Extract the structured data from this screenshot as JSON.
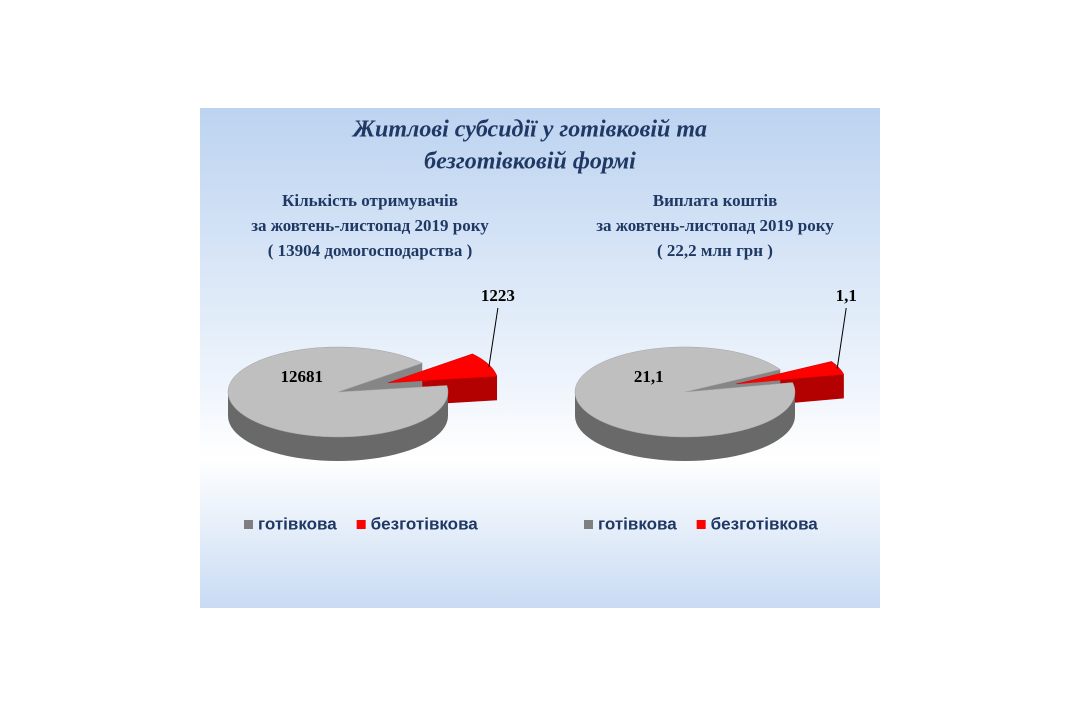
{
  "title": [
    "Житлові субсидії у готівковій та",
    "безготівковій формі"
  ],
  "chart_data": [
    {
      "type": "pie",
      "title": [
        "Кількість отримувачів",
        "за жовтень-листопад 2019 року",
        "( 13904 домогосподарства )"
      ],
      "categories": [
        "готівкова",
        "безготівкова"
      ],
      "values": [
        12681,
        1223
      ],
      "colors": [
        "#bfbfbf",
        "#ff0000"
      ],
      "legend": "bottom"
    },
    {
      "type": "pie",
      "title": [
        "Виплата коштів",
        "за жовтень-листопад 2019 року",
        "( 22,2 млн грн )"
      ],
      "categories": [
        "готівкова",
        "безготівкова"
      ],
      "values": [
        21.1,
        1.1
      ],
      "value_labels": [
        "21,1",
        "1,1"
      ],
      "colors": [
        "#bfbfbf",
        "#ff0000"
      ],
      "legend": "bottom"
    }
  ]
}
